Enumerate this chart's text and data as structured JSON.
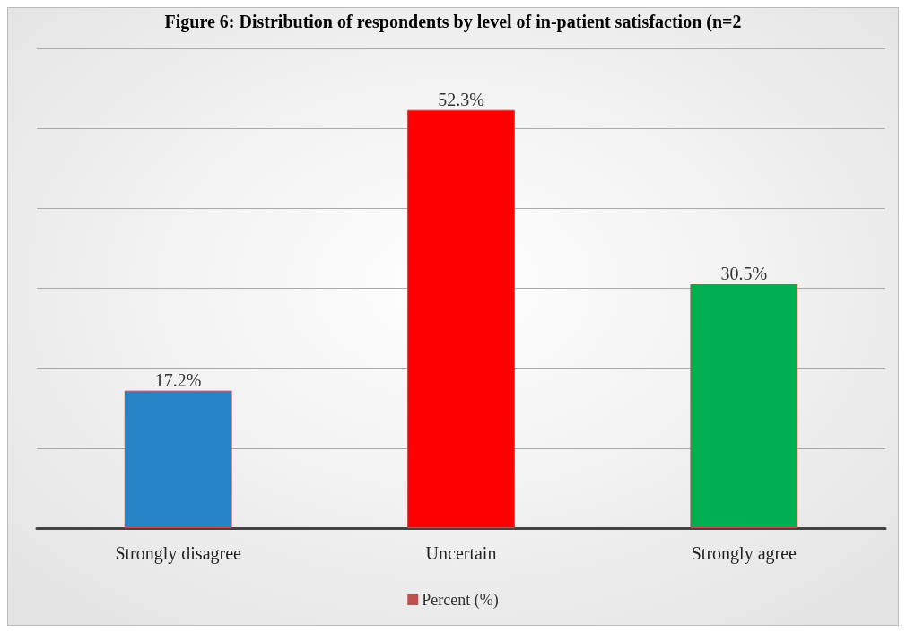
{
  "chart_data": {
    "type": "bar",
    "title": "Figure 6: Distribution of respondents by level of in-patient satisfaction (n=2",
    "categories": [
      "Strongly disagree",
      "Uncertain",
      "Strongly agree"
    ],
    "series": [
      {
        "name": "Percent (%)",
        "color": "#c0504d",
        "values": [
          17.2,
          52.3,
          30.5
        ],
        "value_labels": [
          "17.2%",
          "52.3%",
          "30.5%"
        ],
        "colors": [
          "#2683c6",
          "#ff0000",
          "#00b050"
        ]
      }
    ],
    "grid": true,
    "legend": "bottom",
    "tick_labels": "x"
  }
}
